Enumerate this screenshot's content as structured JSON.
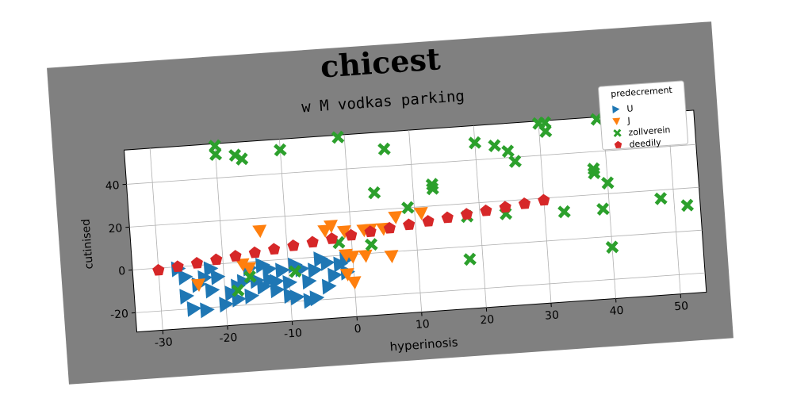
{
  "chart_data": {
    "type": "scatter",
    "title": "chicest",
    "subtitle": "w M vodkas parking",
    "xlabel": "hyperinosis",
    "ylabel": "cutinised",
    "xlim": [
      -34,
      54
    ],
    "ylim": [
      -29,
      56
    ],
    "xticks": [
      -30,
      -20,
      -10,
      0,
      10,
      20,
      30,
      40,
      50
    ],
    "yticks": [
      -20,
      0,
      20,
      40
    ],
    "grid": true,
    "legend": {
      "title": "predecrement",
      "position": "top-right"
    },
    "series": [
      {
        "name": "U",
        "marker": "triangle-right",
        "color": "#1f77b4",
        "points": [
          [
            -27,
            -1
          ],
          [
            -26,
            -5
          ],
          [
            -24,
            -9
          ],
          [
            -22,
            -12
          ],
          [
            -25,
            -20
          ],
          [
            -23,
            -21
          ],
          [
            -20,
            -19
          ],
          [
            -18,
            -17
          ],
          [
            -16,
            -16
          ],
          [
            -14,
            -12
          ],
          [
            -12,
            -10
          ],
          [
            -12,
            -14
          ],
          [
            -10,
            -17
          ],
          [
            -9,
            -18
          ],
          [
            -7,
            -20
          ],
          [
            -6,
            -19
          ],
          [
            -4,
            -14
          ],
          [
            -3,
            -9
          ],
          [
            -1,
            -8
          ],
          [
            -1,
            -2
          ],
          [
            -2,
            -4
          ],
          [
            -4,
            -3
          ],
          [
            -5,
            -1
          ],
          [
            -6,
            -6
          ],
          [
            -8,
            -5
          ],
          [
            -9,
            -3
          ],
          [
            -11,
            -5
          ],
          [
            -13,
            -4
          ],
          [
            -14,
            -2
          ],
          [
            -16,
            -3
          ],
          [
            -17,
            -9
          ],
          [
            -18,
            -11
          ],
          [
            -19,
            -14
          ],
          [
            -15,
            -9
          ],
          [
            -13,
            -9
          ],
          [
            -21,
            -6
          ],
          [
            -23,
            -6
          ],
          [
            -26,
            -14
          ],
          [
            -22,
            -2
          ],
          [
            -10,
            -11
          ],
          [
            -7,
            -11
          ]
        ]
      },
      {
        "name": "J",
        "marker": "triangle-down",
        "color": "#ff7f0e",
        "points": [
          [
            -24,
            -9
          ],
          [
            -17,
            -1
          ],
          [
            -16,
            -3
          ],
          [
            -14,
            14
          ],
          [
            -4,
            12
          ],
          [
            -3,
            14
          ],
          [
            -1,
            11
          ],
          [
            -1,
            0
          ],
          [
            0,
            -1
          ],
          [
            2,
            -1
          ],
          [
            2,
            11
          ],
          [
            3,
            11
          ],
          [
            5,
            11
          ],
          [
            7,
            16
          ],
          [
            6,
            -2
          ],
          [
            11,
            17
          ],
          [
            -1,
            -9
          ],
          [
            0,
            -13
          ]
        ]
      },
      {
        "name": "zollverein",
        "marker": "x",
        "color": "#2ca02c",
        "points": [
          [
            -20,
            55
          ],
          [
            -20,
            51
          ],
          [
            -17,
            50
          ],
          [
            -16,
            48
          ],
          [
            -10,
            51
          ],
          [
            -1,
            55
          ],
          [
            6,
            48
          ],
          [
            4,
            28
          ],
          [
            9,
            20
          ],
          [
            13,
            28
          ],
          [
            13,
            30
          ],
          [
            18,
            14
          ],
          [
            20,
            48
          ],
          [
            23,
            46
          ],
          [
            25,
            43
          ],
          [
            26,
            38
          ],
          [
            24,
            14
          ],
          [
            31,
            55
          ],
          [
            30,
            55
          ],
          [
            31,
            51
          ],
          [
            39,
            55
          ],
          [
            38,
            30
          ],
          [
            38,
            32
          ],
          [
            40,
            25
          ],
          [
            39,
            13
          ],
          [
            33,
            13
          ],
          [
            18,
            -6
          ],
          [
            40,
            -5
          ],
          [
            48,
            16
          ],
          [
            52,
            12
          ],
          [
            -9,
            -6
          ],
          [
            -2,
            6
          ],
          [
            3,
            4
          ],
          [
            -16,
            -7
          ],
          [
            -18,
            -13
          ]
        ]
      },
      {
        "name": "deedily",
        "marker": "pentagon",
        "color": "#d62728",
        "points": [
          [
            -30,
            -1
          ],
          [
            -27,
            0
          ],
          [
            -24,
            1
          ],
          [
            -21,
            2
          ],
          [
            -18,
            3
          ],
          [
            -15,
            4
          ],
          [
            -12,
            5
          ],
          [
            -9,
            6
          ],
          [
            -6,
            7
          ],
          [
            -3,
            8
          ],
          [
            0,
            9
          ],
          [
            3,
            10
          ],
          [
            6,
            11
          ],
          [
            9,
            12
          ],
          [
            12,
            13
          ],
          [
            15,
            14
          ],
          [
            18,
            15
          ],
          [
            21,
            16
          ],
          [
            24,
            17
          ],
          [
            27,
            18
          ],
          [
            30,
            19
          ]
        ]
      }
    ]
  }
}
